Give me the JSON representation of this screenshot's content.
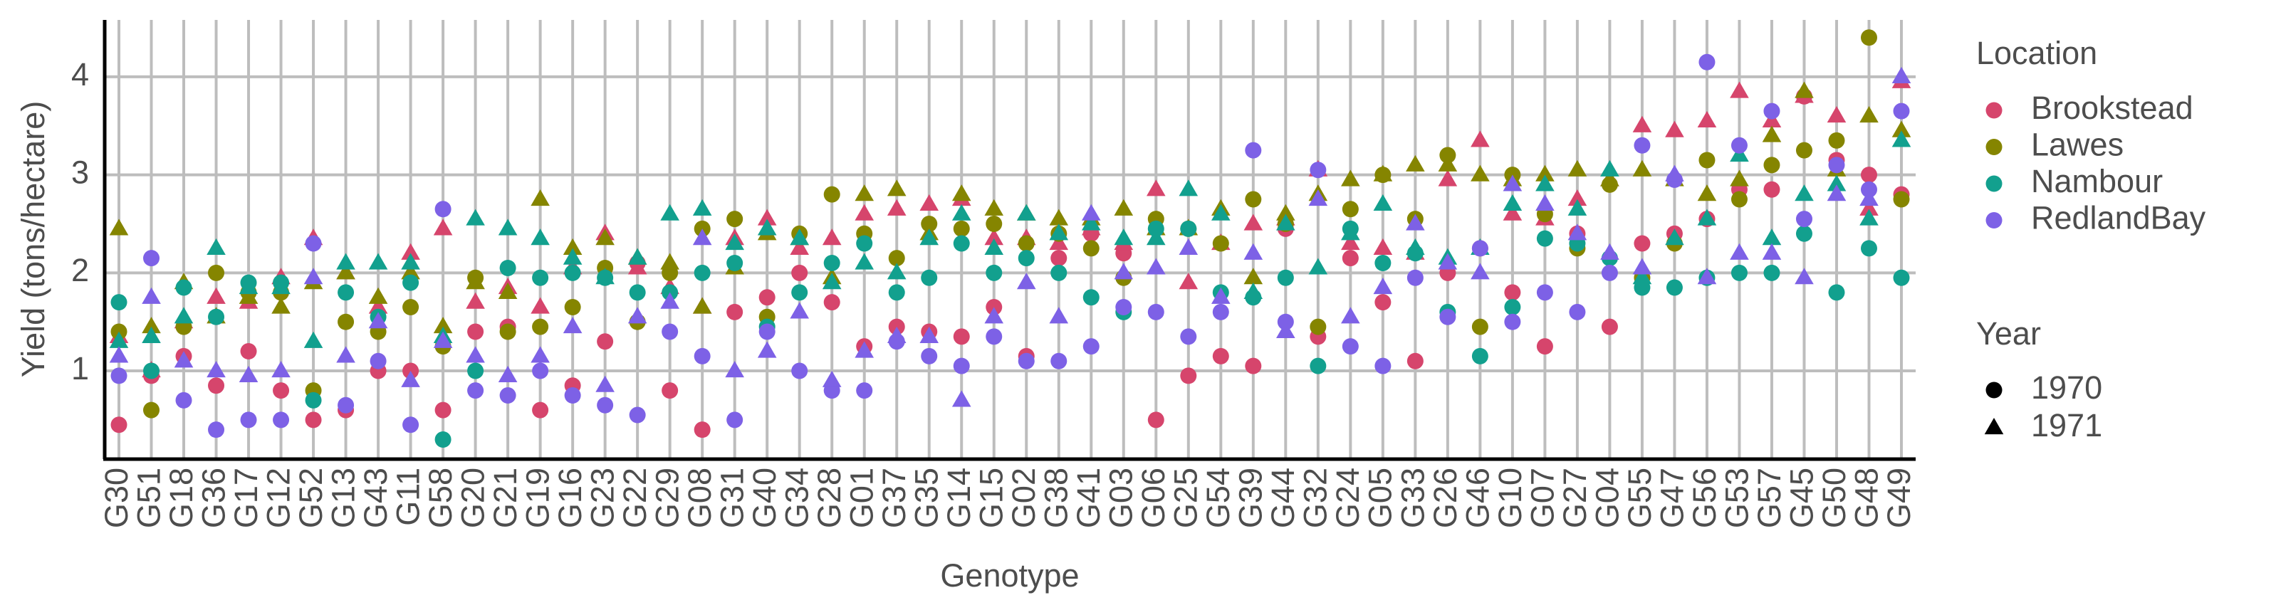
{
  "chart_data": {
    "type": "scatter",
    "x_label": "Genotype",
    "y_label": "Yield (tons/hectare)",
    "categories": [
      "G30",
      "G51",
      "G18",
      "G36",
      "G17",
      "G12",
      "G52",
      "G13",
      "G43",
      "G11",
      "G58",
      "G20",
      "G21",
      "G19",
      "G16",
      "G23",
      "G22",
      "G29",
      "G08",
      "G31",
      "G40",
      "G34",
      "G28",
      "G01",
      "G37",
      "G35",
      "G14",
      "G15",
      "G02",
      "G38",
      "G41",
      "G03",
      "G06",
      "G25",
      "G54",
      "G39",
      "G44",
      "G32",
      "G24",
      "G05",
      "G33",
      "G26",
      "G46",
      "G10",
      "G07",
      "G27",
      "G04",
      "G55",
      "G47",
      "G56",
      "G53",
      "G57",
      "G45",
      "G50",
      "G48",
      "G49"
    ],
    "color_legend_title": "Location",
    "shape_legend": {
      "title": "Year",
      "entries": [
        "1970",
        "1971"
      ],
      "shapes": [
        "circle",
        "triangle"
      ]
    },
    "series": [
      {
        "name": "Brookstead",
        "color": "#d6456c",
        "values": [
          [
            0.45,
            0.95,
            1.15,
            0.85,
            1.2,
            0.8,
            0.5,
            0.6,
            1.0,
            1.0,
            0.6,
            1.4,
            1.45,
            0.6,
            0.85,
            1.3,
            2.1,
            0.8,
            0.4,
            1.6,
            1.75,
            2.0,
            1.7,
            1.25,
            1.45,
            1.4,
            1.35,
            1.65,
            1.15,
            2.15,
            2.4,
            2.2,
            0.5,
            0.95,
            1.15,
            1.05,
            2.45,
            1.35,
            2.15,
            1.7,
            1.1,
            2.0,
            2.25,
            1.8,
            1.25,
            2.4,
            1.45,
            2.3,
            2.4,
            2.55,
            2.85,
            2.85,
            3.8,
            3.15,
            3.0,
            2.8
          ],
          [
            1.35,
            1.0,
            1.5,
            1.75,
            1.7,
            1.95,
            2.35,
            2.0,
            1.65,
            2.2,
            2.45,
            1.7,
            1.85,
            1.65,
            2.05,
            2.4,
            2.05,
            1.85,
            1.65,
            2.35,
            2.55,
            2.25,
            2.35,
            2.6,
            2.65,
            2.7,
            2.75,
            2.35,
            2.35,
            2.3,
            2.45,
            2.3,
            2.85,
            1.9,
            2.3,
            2.5,
            2.55,
            3.05,
            2.3,
            2.25,
            2.2,
            2.95,
            3.35,
            2.6,
            2.55,
            2.75,
            2.95,
            3.5,
            3.45,
            3.55,
            3.85,
            3.55,
            3.8,
            3.6,
            2.65,
            3.95
          ]
        ]
      },
      {
        "name": "Lawes",
        "color": "#858500",
        "values": [
          [
            1.4,
            0.6,
            1.45,
            2.0,
            1.8,
            1.8,
            0.8,
            1.5,
            1.4,
            1.65,
            1.25,
            1.95,
            1.4,
            1.45,
            1.65,
            2.05,
            1.5,
            2.0,
            2.45,
            2.55,
            1.55,
            2.4,
            2.8,
            2.4,
            2.15,
            2.5,
            2.45,
            2.5,
            2.3,
            2.4,
            2.25,
            1.95,
            2.55,
            2.45,
            2.3,
            2.75,
            2.5,
            1.45,
            2.65,
            3.0,
            2.55,
            3.2,
            1.45,
            3.0,
            2.6,
            2.25,
            2.9,
            1.95,
            2.3,
            3.15,
            2.75,
            3.1,
            3.25,
            3.35,
            4.4,
            2.75
          ],
          [
            2.45,
            1.45,
            1.9,
            1.55,
            1.75,
            1.65,
            1.9,
            2.0,
            1.75,
            2.0,
            1.45,
            1.9,
            1.8,
            2.75,
            2.25,
            2.35,
            2.15,
            2.1,
            1.65,
            2.05,
            2.4,
            2.35,
            1.95,
            2.8,
            2.85,
            2.4,
            2.8,
            2.65,
            2.6,
            2.55,
            2.55,
            2.65,
            2.45,
            2.45,
            2.65,
            1.95,
            2.6,
            2.8,
            2.95,
            3.0,
            3.1,
            3.1,
            3.0,
            2.95,
            3.0,
            3.05,
            2.95,
            3.05,
            2.95,
            2.8,
            2.95,
            3.4,
            3.85,
            3.05,
            3.6,
            3.45
          ]
        ]
      },
      {
        "name": "Nambour",
        "color": "#12a08e",
        "values": [
          [
            1.7,
            1.0,
            1.85,
            1.55,
            1.9,
            1.9,
            0.7,
            1.8,
            1.55,
            1.9,
            0.3,
            1.0,
            2.05,
            1.95,
            2.0,
            1.95,
            1.8,
            1.8,
            2.0,
            2.1,
            1.45,
            1.8,
            2.1,
            2.3,
            1.8,
            1.95,
            2.3,
            2.0,
            2.15,
            2.0,
            1.75,
            1.6,
            2.45,
            2.45,
            1.8,
            1.75,
            1.95,
            1.05,
            2.45,
            2.1,
            2.2,
            1.6,
            1.15,
            1.65,
            2.35,
            2.3,
            2.15,
            1.85,
            1.85,
            1.95,
            2.0,
            2.0,
            2.4,
            1.8,
            2.25,
            1.95
          ],
          [
            1.3,
            1.35,
            1.55,
            2.25,
            1.85,
            1.85,
            1.3,
            2.1,
            2.1,
            2.1,
            1.35,
            2.55,
            2.45,
            2.35,
            2.15,
            1.95,
            2.15,
            2.6,
            2.65,
            2.3,
            2.45,
            2.35,
            1.9,
            2.1,
            2.0,
            2.35,
            2.6,
            2.25,
            2.6,
            2.4,
            2.5,
            2.35,
            2.35,
            2.85,
            2.6,
            1.8,
            2.5,
            2.05,
            2.4,
            2.7,
            2.25,
            2.15,
            2.25,
            2.7,
            2.9,
            2.65,
            3.05,
            1.95,
            2.35,
            2.55,
            3.2,
            2.35,
            2.8,
            2.9,
            2.55,
            3.35
          ]
        ]
      },
      {
        "name": "RedlandBay",
        "color": "#7d61e6",
        "values": [
          [
            0.95,
            2.15,
            0.7,
            0.4,
            0.5,
            0.5,
            2.3,
            0.65,
            1.1,
            0.45,
            2.65,
            0.8,
            0.75,
            1.0,
            0.75,
            0.65,
            0.55,
            1.4,
            1.15,
            0.5,
            1.4,
            1.0,
            0.8,
            0.8,
            1.3,
            1.15,
            1.05,
            1.35,
            1.1,
            1.1,
            1.25,
            1.65,
            1.6,
            1.35,
            1.6,
            3.25,
            1.5,
            3.05,
            1.25,
            1.05,
            1.95,
            1.55,
            2.25,
            1.5,
            1.8,
            1.6,
            2.0,
            3.3,
            2.95,
            4.15,
            3.3,
            3.65,
            2.55,
            3.1,
            2.85,
            3.65
          ],
          [
            1.15,
            1.75,
            1.1,
            1.0,
            0.95,
            1.0,
            1.95,
            1.15,
            1.5,
            0.9,
            1.3,
            1.15,
            0.95,
            1.15,
            1.45,
            0.85,
            1.55,
            1.7,
            2.35,
            1.0,
            1.2,
            1.6,
            0.9,
            1.2,
            1.35,
            1.35,
            0.7,
            1.55,
            1.9,
            1.55,
            2.6,
            2.0,
            2.05,
            2.25,
            1.75,
            2.2,
            1.4,
            2.75,
            1.55,
            1.85,
            2.5,
            2.1,
            2.0,
            2.9,
            2.7,
            2.4,
            2.2,
            2.05,
            3.0,
            1.95,
            2.2,
            2.2,
            1.95,
            2.8,
            2.75,
            4.0
          ]
        ]
      }
    ],
    "ylim": [
      0.1,
      4.58
    ],
    "yticks": [
      1,
      2,
      3,
      4
    ],
    "grid": true
  }
}
